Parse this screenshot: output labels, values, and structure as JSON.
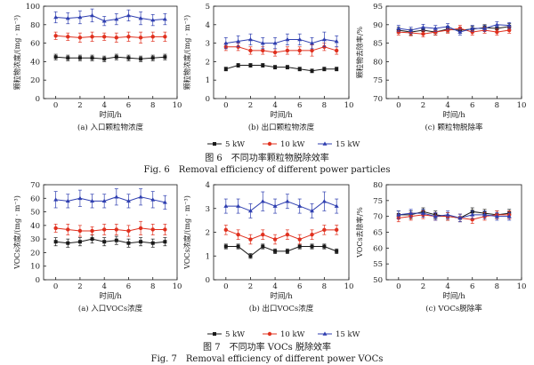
{
  "colors": {
    "s5": "#1a1a1a",
    "s10": "#e0301e",
    "s15": "#2f3fb0",
    "axis": "#1a1a1a"
  },
  "figures": [
    {
      "cn_caption": "图 6　不同功率颗粒物脱除效率",
      "en_caption": "Fig. 6　Removal efficiency of different power particles",
      "legend": [
        "5 kW",
        "10 kW",
        "15 kW"
      ]
    },
    {
      "cn_caption": "图 7　不同功率 VOCs 脱除效率",
      "en_caption": "Fig. 7　Removal efficiency of different power VOCs",
      "legend": [
        "5 kW",
        "10 kW",
        "15 kW"
      ]
    }
  ],
  "chart_data": [
    {
      "type": "line",
      "panel": "6a",
      "xlabel": "时间/h",
      "ylabel": "颗粒物浓度/(mg · m⁻³)",
      "caption": "(a) 入口颗粒物浓度",
      "xlim": [
        -1,
        10
      ],
      "ylim": [
        0,
        100
      ],
      "xticks": [
        0,
        2,
        4,
        6,
        8,
        10
      ],
      "yticks": [
        0,
        20,
        40,
        60,
        80,
        100
      ],
      "x": [
        0,
        1,
        2,
        3,
        4,
        5,
        6,
        7,
        8,
        9
      ],
      "series": [
        {
          "name": "5 kW",
          "values": [
            45,
            44,
            44,
            44,
            43,
            45,
            44,
            43,
            44,
            45
          ],
          "err": [
            3,
            3,
            3,
            3,
            3,
            3,
            3,
            3,
            3,
            3
          ]
        },
        {
          "name": "10 kW",
          "values": [
            68,
            67,
            66,
            67,
            67,
            66,
            67,
            66,
            67,
            67
          ],
          "err": [
            4,
            4,
            5,
            5,
            4,
            5,
            5,
            6,
            5,
            5
          ]
        },
        {
          "name": "15 kW",
          "values": [
            88,
            87,
            88,
            90,
            84,
            86,
            90,
            87,
            85,
            86
          ],
          "err": [
            6,
            6,
            7,
            7,
            5,
            6,
            6,
            7,
            6,
            6
          ]
        }
      ]
    },
    {
      "type": "line",
      "panel": "6b",
      "xlabel": "时间/h",
      "ylabel": "颗粒物浓度/(mg · m⁻³)",
      "caption": "(b) 出口颗粒物浓度",
      "xlim": [
        -1,
        10
      ],
      "ylim": [
        0,
        5
      ],
      "xticks": [
        0,
        2,
        4,
        6,
        8,
        10
      ],
      "yticks": [
        0,
        1,
        2,
        3,
        4,
        5
      ],
      "x": [
        0,
        1,
        2,
        3,
        4,
        5,
        6,
        7,
        8,
        9
      ],
      "series": [
        {
          "name": "5 kW",
          "values": [
            1.6,
            1.8,
            1.8,
            1.8,
            1.7,
            1.7,
            1.6,
            1.5,
            1.6,
            1.6
          ],
          "err": [
            0.1,
            0.1,
            0.1,
            0.1,
            0.1,
            0.1,
            0.1,
            0.1,
            0.1,
            0.1
          ]
        },
        {
          "name": "10 kW",
          "values": [
            2.8,
            2.8,
            2.6,
            2.6,
            2.5,
            2.6,
            2.6,
            2.6,
            2.8,
            2.6
          ],
          "err": [
            0.2,
            0.2,
            0.2,
            0.2,
            0.2,
            0.2,
            0.2,
            0.3,
            0.2,
            0.2
          ]
        },
        {
          "name": "15 kW",
          "values": [
            3.0,
            3.1,
            3.2,
            3.0,
            3.0,
            3.2,
            3.2,
            3.0,
            3.2,
            3.1
          ],
          "err": [
            0.3,
            0.3,
            0.3,
            0.3,
            0.3,
            0.3,
            0.3,
            0.3,
            0.4,
            0.3
          ]
        }
      ]
    },
    {
      "type": "line",
      "panel": "6c",
      "xlabel": "时间/h",
      "ylabel": "颗粒物去除率/%",
      "caption": "(c) 颗粒物脱除率",
      "xlim": [
        -1,
        10
      ],
      "ylim": [
        70,
        95
      ],
      "xticks": [
        0,
        2,
        4,
        6,
        8,
        10
      ],
      "yticks": [
        70,
        75,
        80,
        85,
        90,
        95
      ],
      "x": [
        0,
        1,
        2,
        3,
        4,
        5,
        6,
        7,
        8,
        9
      ],
      "series": [
        {
          "name": "5 kW",
          "values": [
            88.5,
            88.0,
            88.5,
            88.0,
            88.8,
            88.5,
            88.8,
            89.2,
            89.0,
            89.5
          ],
          "err": [
            0.8,
            0.8,
            0.8,
            0.8,
            0.8,
            0.8,
            0.8,
            0.8,
            0.8,
            0.8
          ]
        },
        {
          "name": "10 kW",
          "values": [
            88.0,
            87.8,
            87.5,
            88.0,
            88.5,
            89.0,
            88.0,
            88.5,
            88.0,
            88.5
          ],
          "err": [
            0.8,
            0.8,
            0.8,
            0.8,
            0.8,
            0.8,
            0.8,
            0.8,
            0.8,
            0.8
          ]
        },
        {
          "name": "15 kW",
          "values": [
            89.0,
            88.5,
            89.3,
            89.0,
            89.5,
            88.0,
            89.0,
            89.0,
            90.0,
            89.8
          ],
          "err": [
            0.8,
            0.8,
            0.8,
            0.8,
            0.8,
            0.8,
            0.8,
            0.8,
            0.8,
            0.8
          ]
        }
      ]
    },
    {
      "type": "line",
      "panel": "7a",
      "xlabel": "时间/h",
      "ylabel": "VOCs浓度/(mg · m⁻³)",
      "caption": "(a) 入口VOCs浓度",
      "xlim": [
        -1,
        10
      ],
      "ylim": [
        0,
        70
      ],
      "xticks": [
        0,
        2,
        4,
        6,
        8,
        10
      ],
      "yticks": [
        0,
        10,
        20,
        30,
        40,
        50,
        60,
        70
      ],
      "x": [
        0,
        1,
        2,
        3,
        4,
        5,
        6,
        7,
        8,
        9
      ],
      "series": [
        {
          "name": "5 kW",
          "values": [
            28,
            27,
            28,
            30,
            28,
            29,
            27,
            28,
            27,
            28
          ],
          "err": [
            3,
            3,
            3,
            3,
            3,
            3,
            3,
            3,
            3,
            3
          ]
        },
        {
          "name": "10 kW",
          "values": [
            38,
            37,
            36,
            36,
            37,
            37,
            36,
            38,
            37,
            37
          ],
          "err": [
            3,
            4,
            4,
            3,
            4,
            4,
            4,
            5,
            4,
            4
          ]
        },
        {
          "name": "15 kW",
          "values": [
            59,
            58,
            60,
            58,
            58,
            61,
            58,
            61,
            59,
            57
          ],
          "err": [
            6,
            5,
            6,
            5,
            5,
            6,
            5,
            6,
            6,
            5
          ]
        }
      ]
    },
    {
      "type": "line",
      "panel": "7b",
      "xlabel": "时间/h",
      "ylabel": "VOCs浓度/(mg · m⁻³)",
      "caption": "(b) 出口VOCs浓度",
      "xlim": [
        -1,
        10
      ],
      "ylim": [
        0,
        4
      ],
      "xticks": [
        0,
        2,
        4,
        6,
        8,
        10
      ],
      "yticks": [
        0,
        1,
        2,
        3,
        4
      ],
      "x": [
        0,
        1,
        2,
        3,
        4,
        5,
        6,
        7,
        8,
        9
      ],
      "series": [
        {
          "name": "5 kW",
          "values": [
            1.4,
            1.4,
            1.0,
            1.4,
            1.2,
            1.2,
            1.4,
            1.4,
            1.4,
            1.2
          ],
          "err": [
            0.1,
            0.1,
            0.1,
            0.1,
            0.1,
            0.1,
            0.1,
            0.1,
            0.1,
            0.1
          ]
        },
        {
          "name": "10 kW",
          "values": [
            2.1,
            1.9,
            1.7,
            1.9,
            1.7,
            1.9,
            1.7,
            1.9,
            2.1,
            2.1
          ],
          "err": [
            0.2,
            0.2,
            0.2,
            0.2,
            0.2,
            0.2,
            0.2,
            0.2,
            0.2,
            0.2
          ]
        },
        {
          "name": "15 kW",
          "values": [
            3.1,
            3.1,
            2.9,
            3.3,
            3.1,
            3.3,
            3.1,
            2.9,
            3.3,
            3.1
          ],
          "err": [
            0.3,
            0.3,
            0.3,
            0.4,
            0.3,
            0.3,
            0.3,
            0.3,
            0.4,
            0.3
          ]
        }
      ]
    },
    {
      "type": "line",
      "panel": "7c",
      "xlabel": "时间/h",
      "ylabel": "VOCs去除率/%",
      "caption": "(c) VOCs脱除率",
      "xlim": [
        -1,
        10
      ],
      "ylim": [
        50,
        80
      ],
      "xticks": [
        0,
        2,
        4,
        6,
        8,
        10
      ],
      "yticks": [
        50,
        55,
        60,
        65,
        70,
        75,
        80
      ],
      "x": [
        0,
        1,
        2,
        3,
        4,
        5,
        6,
        7,
        8,
        9
      ],
      "series": [
        {
          "name": "5 kW",
          "values": [
            70.5,
            70.5,
            71.5,
            70.5,
            70.0,
            69.5,
            71.5,
            71.0,
            70.5,
            71.0
          ],
          "err": [
            1.2,
            1.2,
            1.2,
            1.2,
            1.2,
            1.2,
            1.2,
            1.2,
            1.2,
            1.2
          ]
        },
        {
          "name": "10 kW",
          "values": [
            69.5,
            70.0,
            70.5,
            70.0,
            70.0,
            69.5,
            69.0,
            70.0,
            70.5,
            70.5
          ],
          "err": [
            1.2,
            1.2,
            1.2,
            1.2,
            1.2,
            1.2,
            1.2,
            1.2,
            1.2,
            1.2
          ]
        },
        {
          "name": "15 kW",
          "values": [
            70.5,
            71.0,
            71.0,
            70.0,
            70.5,
            69.5,
            70.5,
            70.5,
            70.0,
            70.0
          ],
          "err": [
            1.2,
            1.2,
            1.2,
            1.2,
            1.2,
            1.2,
            1.2,
            1.2,
            1.2,
            1.2
          ]
        }
      ]
    }
  ]
}
